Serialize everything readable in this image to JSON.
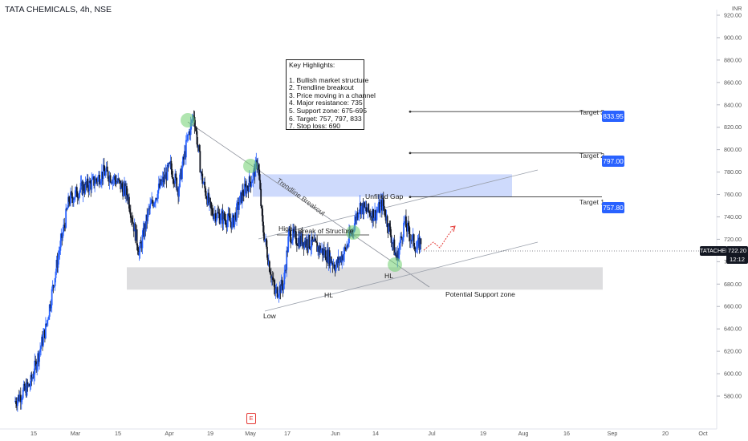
{
  "header": {
    "title": "TATA CHEMICALS, 4h, NSE"
  },
  "currency": "INR",
  "key_highlights": {
    "title": "Key Highlights:",
    "items": [
      "1. Bullish market structure",
      "2. Trendline breakout",
      "3. Price moving in a channel",
      "4. Major resistance: 735",
      "5. Support zone: 675-695",
      "6. Target: 757, 797, 833",
      "7. Stop loss: 690"
    ]
  },
  "annotations": {
    "unfilled_gap": "Unfilled Gap",
    "trendline_breakout": "Trendline Breakout",
    "break_of_structure": "Break of Structure",
    "high": "High",
    "low": "Low",
    "hl_1": "HL",
    "hl_2": "HL",
    "support_zone": "Potential Support zone"
  },
  "targets": [
    {
      "label": "Target 3",
      "value": "833.95"
    },
    {
      "label": "Target 2",
      "value": "797.00"
    },
    {
      "label": "Target 1",
      "value": "757.80"
    }
  ],
  "last_price": {
    "symbol": "TATACHEM",
    "price": "722.20",
    "countdown": "12:12"
  },
  "earnings_marker": "E",
  "colors": {
    "up_candle": "#2962ff",
    "down_candle": "#131722",
    "target_badge": "#2962ff",
    "gap_zone": "#c5d3fb",
    "support_zone": "#d9d9dc",
    "highlight_circle": "#6fcf6f",
    "forecast_arrow": "#e53935"
  },
  "chart_data": {
    "type": "candlestick",
    "y_ticks": [
      "920.00",
      "900.00",
      "880.00",
      "860.00",
      "840.00",
      "820.00",
      "800.00",
      "780.00",
      "760.00",
      "740.00",
      "720.00",
      "700.00",
      "680.00",
      "660.00",
      "640.00",
      "620.00",
      "600.00",
      "580.00"
    ],
    "x_ticks": [
      "15",
      "Mar",
      "15",
      "Apr",
      "19",
      "May",
      "17",
      "Jun",
      "14",
      "Jul",
      "19",
      "Aug",
      "16",
      "Sep",
      "20",
      "Oct"
    ],
    "ylim": [
      575,
      930
    ],
    "zones": {
      "unfilled_gap": [
        758,
        778
      ],
      "potential_support": [
        675,
        695
      ]
    },
    "targets": [
      833.95,
      797.0,
      757.8
    ],
    "close_path": [
      {
        "t": 0,
        "close": 575
      },
      {
        "t": 20,
        "close": 590
      },
      {
        "t": 40,
        "close": 640
      },
      {
        "t": 55,
        "close": 700
      },
      {
        "t": 70,
        "close": 755
      },
      {
        "t": 85,
        "close": 765
      },
      {
        "t": 100,
        "close": 770
      },
      {
        "t": 115,
        "close": 780
      },
      {
        "t": 130,
        "close": 773
      },
      {
        "t": 145,
        "close": 760
      },
      {
        "t": 160,
        "close": 708
      },
      {
        "t": 172,
        "close": 745
      },
      {
        "t": 185,
        "close": 765
      },
      {
        "t": 200,
        "close": 785
      },
      {
        "t": 210,
        "close": 765
      },
      {
        "t": 222,
        "close": 810
      },
      {
        "t": 230,
        "close": 832
      },
      {
        "t": 240,
        "close": 775
      },
      {
        "t": 252,
        "close": 745
      },
      {
        "t": 265,
        "close": 740
      },
      {
        "t": 280,
        "close": 735
      },
      {
        "t": 292,
        "close": 760
      },
      {
        "t": 305,
        "close": 775
      },
      {
        "t": 312,
        "close": 790
      },
      {
        "t": 318,
        "close": 732
      },
      {
        "t": 326,
        "close": 700
      },
      {
        "t": 334,
        "close": 672
      },
      {
        "t": 345,
        "close": 680
      },
      {
        "t": 352,
        "close": 725
      },
      {
        "t": 362,
        "close": 720
      },
      {
        "t": 375,
        "close": 718
      },
      {
        "t": 390,
        "close": 712
      },
      {
        "t": 402,
        "close": 705
      },
      {
        "t": 412,
        "close": 696
      },
      {
        "t": 424,
        "close": 710
      },
      {
        "t": 434,
        "close": 730
      },
      {
        "t": 442,
        "close": 750
      },
      {
        "t": 452,
        "close": 745
      },
      {
        "t": 462,
        "close": 742
      },
      {
        "t": 472,
        "close": 752
      },
      {
        "t": 482,
        "close": 725
      },
      {
        "t": 490,
        "close": 702
      },
      {
        "t": 500,
        "close": 735
      },
      {
        "t": 508,
        "close": 722
      },
      {
        "t": 516,
        "close": 712
      },
      {
        "t": 524,
        "close": 722
      }
    ]
  }
}
